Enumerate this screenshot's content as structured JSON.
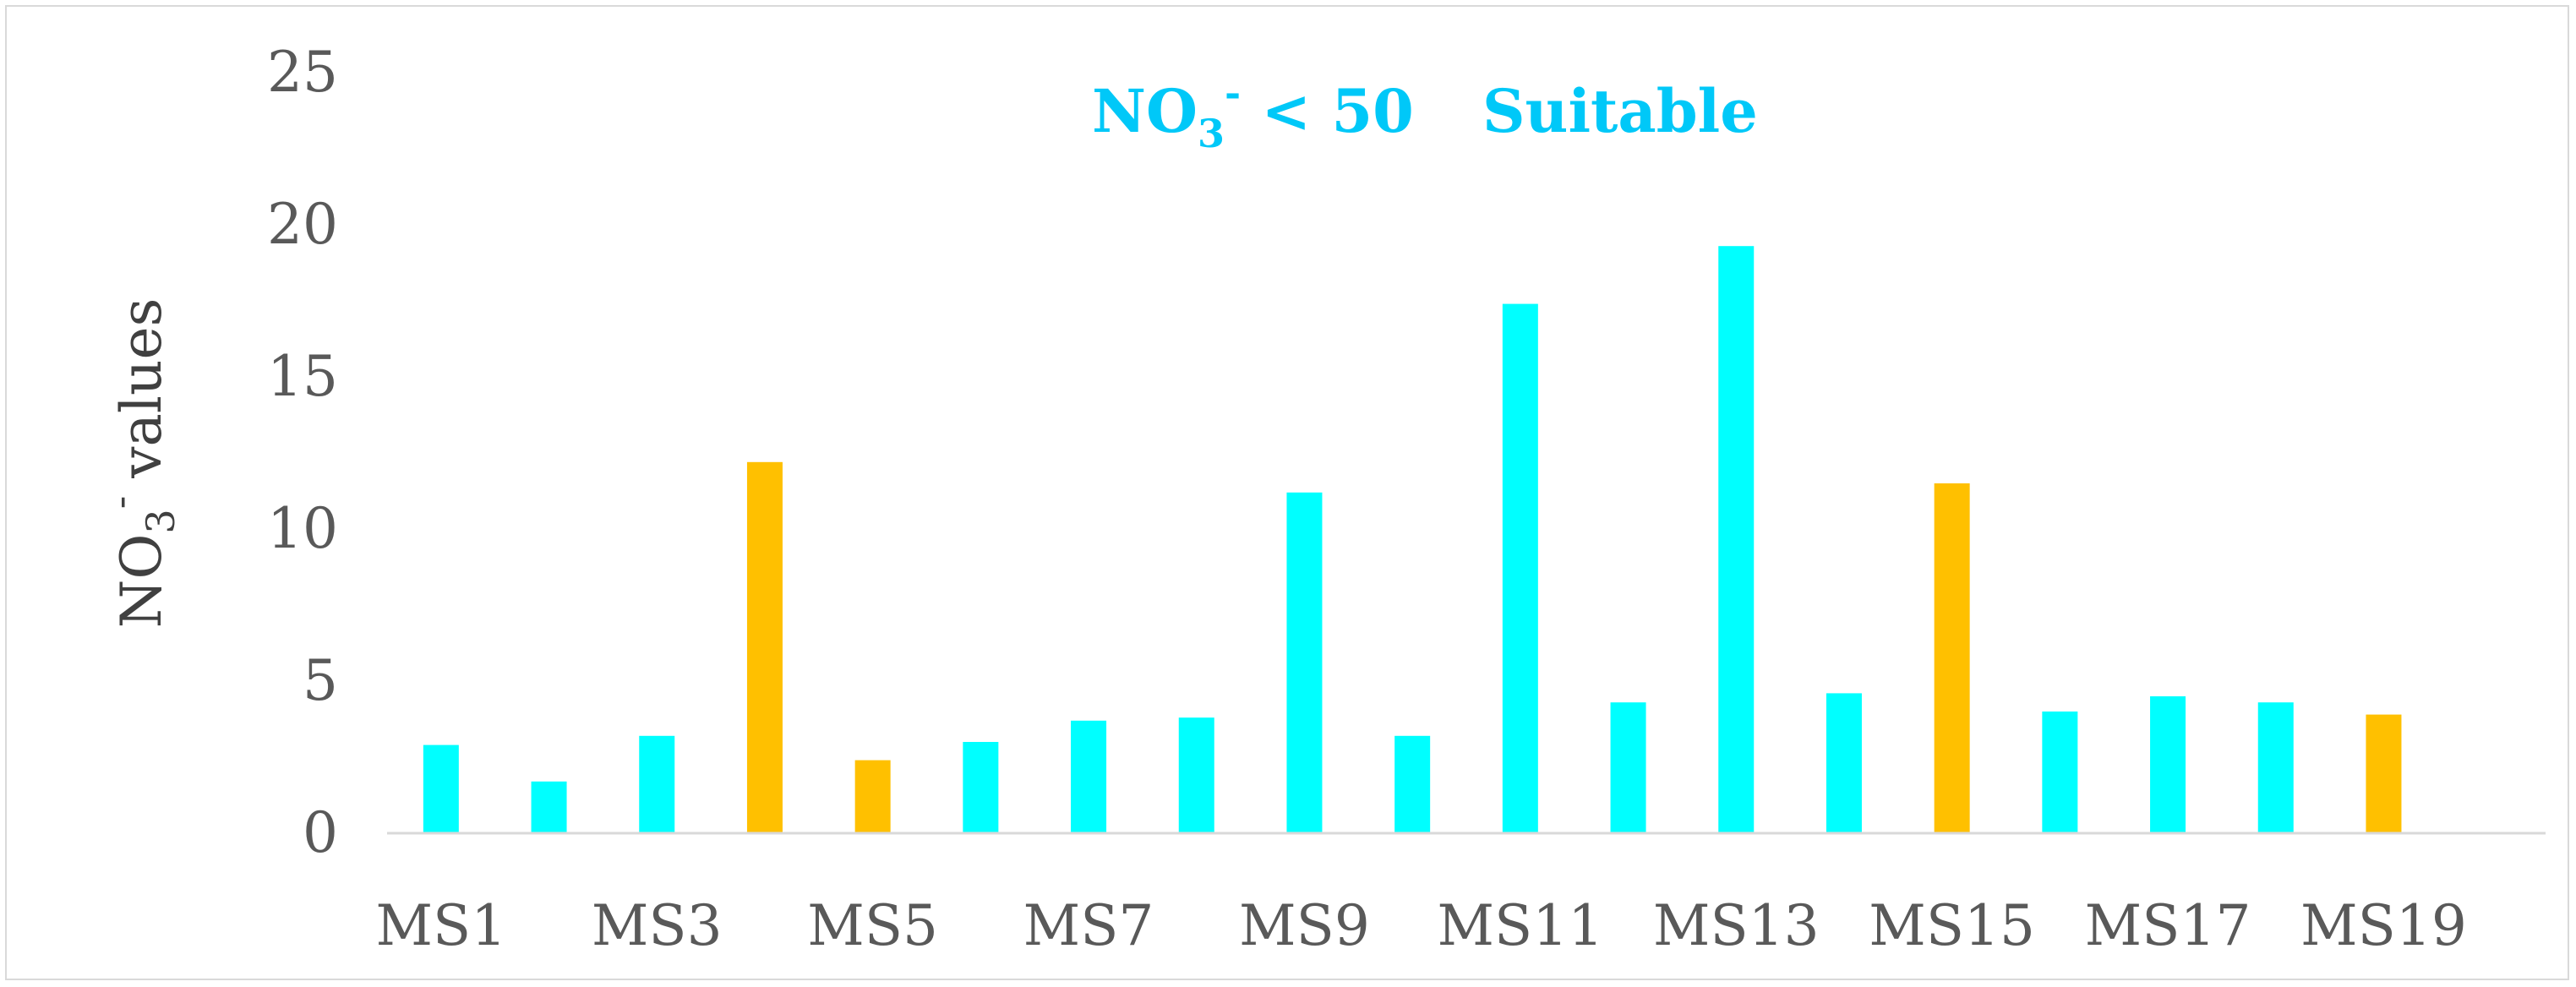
{
  "chart_data": {
    "type": "bar",
    "categories": [
      "MS1",
      "MS2",
      "MS3",
      "MS4",
      "MS5",
      "MS6",
      "MS7",
      "MS8",
      "MS9",
      "MS10",
      "MS11",
      "MS12",
      "MS13",
      "MS14",
      "MS15",
      "MS16",
      "MS17",
      "MS18",
      "MS19",
      "MS20"
    ],
    "category_labels_shown": [
      "MS1",
      "",
      "MS3",
      "",
      "MS5",
      "",
      "MS7",
      "",
      "MS9",
      "",
      "MS11",
      "",
      "MS13",
      "",
      "MS15",
      "",
      "MS17",
      "",
      "MS19",
      ""
    ],
    "values": [
      2.9,
      1.7,
      3.2,
      12.2,
      2.4,
      3.0,
      3.7,
      3.8,
      11.2,
      3.2,
      17.4,
      4.3,
      19.3,
      4.6,
      11.5,
      4.0,
      4.5,
      4.3,
      3.9,
      0
    ],
    "bar_colors": [
      "#00ffff",
      "#00ffff",
      "#00ffff",
      "#ffc000",
      "#ffc000",
      "#00ffff",
      "#00ffff",
      "#00ffff",
      "#00ffff",
      "#00ffff",
      "#00ffff",
      "#00ffff",
      "#00ffff",
      "#00ffff",
      "#ffc000",
      "#00ffff",
      "#00ffff",
      "#00ffff",
      "#ffc000",
      "#00ffff"
    ],
    "ylim": [
      0,
      25
    ],
    "yticks": [
      "0",
      "5",
      "10",
      "15",
      "20",
      "25"
    ],
    "ylabel": {
      "main": "NO",
      "sub": "3",
      "sup": "-",
      "rest": " values"
    },
    "annotation": {
      "main": "NO",
      "sub": "3",
      "sup": "-",
      "rest": " < 50",
      "label": "Suitable"
    },
    "grid": false,
    "legend": "none",
    "colors": {
      "suitable": "#00ffff",
      "highlight": "#ffc000",
      "annotation": "#00c8f8",
      "axis": "#d9d9d9",
      "text": "#595959"
    }
  }
}
